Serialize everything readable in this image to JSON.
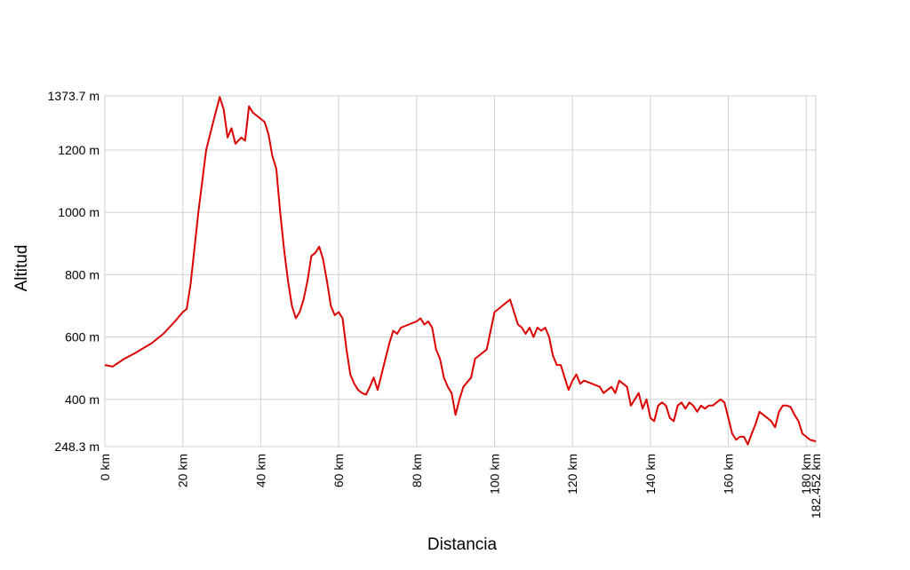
{
  "chart_data": {
    "type": "line",
    "x_label": "Distancia",
    "y_label": "Altitud",
    "xlim": [
      0,
      182.452
    ],
    "ylim": [
      248.3,
      1373.7
    ],
    "xticks": [
      {
        "value": 0,
        "label": "0 km"
      },
      {
        "value": 20,
        "label": "20 km"
      },
      {
        "value": 40,
        "label": "40 km"
      },
      {
        "value": 60,
        "label": "60 km"
      },
      {
        "value": 80,
        "label": "80 km"
      },
      {
        "value": 100,
        "label": "100 km"
      },
      {
        "value": 120,
        "label": "120 km"
      },
      {
        "value": 140,
        "label": "140 km"
      },
      {
        "value": 160,
        "label": "160 km"
      },
      {
        "value": 180,
        "label": "180 km"
      },
      {
        "value": 182.452,
        "label": "182.452 km"
      }
    ],
    "yticks": [
      {
        "value": 248.3,
        "label": "248.3 m"
      },
      {
        "value": 400,
        "label": "400 m"
      },
      {
        "value": 600,
        "label": "600 m"
      },
      {
        "value": 800,
        "label": "800 m"
      },
      {
        "value": 1000,
        "label": "1000 m"
      },
      {
        "value": 1200,
        "label": "1200 m"
      },
      {
        "value": 1373.7,
        "label": "1373.7 m"
      }
    ],
    "grid": true,
    "series": [
      {
        "color": "#dd0000",
        "x": [
          0,
          2,
          5,
          8,
          10,
          12,
          15,
          18,
          20,
          21,
          22,
          24,
          26,
          28,
          29.5,
          30.5,
          31.5,
          32.5,
          33.5,
          35,
          36,
          37,
          38,
          40,
          41,
          42,
          43,
          44,
          45,
          46,
          47,
          48,
          49,
          50,
          51,
          52,
          53,
          54,
          55,
          56,
          57,
          58,
          59,
          60,
          61,
          62,
          63,
          64,
          65,
          66,
          67,
          68,
          69,
          70,
          71,
          72,
          73,
          74,
          75,
          76,
          78,
          80,
          81,
          82,
          83,
          84,
          85,
          86,
          87,
          88,
          89,
          90,
          91,
          92,
          94,
          95,
          96,
          98,
          99,
          100,
          101,
          102,
          103,
          104,
          105,
          106,
          107,
          108,
          109,
          110,
          111,
          112,
          113,
          114,
          115,
          116,
          117,
          118,
          119,
          120,
          121,
          122,
          123,
          125,
          127,
          128,
          130,
          131,
          132,
          134,
          135,
          136,
          137,
          138,
          139,
          140,
          141,
          142,
          143,
          144,
          145,
          146,
          147,
          148,
          149,
          150,
          151,
          152,
          153,
          154,
          155,
          156,
          157,
          158,
          159,
          160,
          161,
          162,
          163,
          164,
          165,
          166,
          167,
          168,
          169,
          170,
          171,
          172,
          173,
          174,
          175,
          176,
          177,
          178,
          179,
          180,
          181,
          182.452
        ],
        "values": [
          510,
          505,
          530,
          550,
          565,
          580,
          610,
          650,
          680,
          690,
          770,
          1000,
          1200,
          1300,
          1370,
          1330,
          1240,
          1270,
          1220,
          1240,
          1230,
          1340,
          1320,
          1300,
          1290,
          1250,
          1180,
          1140,
          1000,
          880,
          780,
          700,
          660,
          680,
          720,
          780,
          860,
          870,
          890,
          850,
          780,
          700,
          670,
          680,
          660,
          560,
          480,
          450,
          430,
          420,
          415,
          440,
          470,
          430,
          480,
          530,
          580,
          620,
          610,
          630,
          640,
          650,
          660,
          640,
          650,
          630,
          560,
          530,
          470,
          440,
          420,
          350,
          400,
          440,
          470,
          530,
          540,
          560,
          620,
          680,
          690,
          700,
          710,
          720,
          680,
          640,
          630,
          610,
          630,
          600,
          630,
          620,
          630,
          600,
          540,
          510,
          510,
          470,
          430,
          460,
          480,
          450,
          460,
          450,
          440,
          420,
          440,
          420,
          460,
          440,
          380,
          400,
          420,
          370,
          400,
          340,
          330,
          380,
          390,
          380,
          340,
          330,
          380,
          390,
          370,
          390,
          380,
          360,
          380,
          370,
          380,
          380,
          390,
          400,
          390,
          340,
          290,
          270,
          280,
          280,
          255,
          290,
          320,
          360,
          350,
          340,
          330,
          310,
          360,
          380,
          380,
          375,
          350,
          330,
          290,
          280,
          270,
          265
        ]
      }
    ]
  }
}
